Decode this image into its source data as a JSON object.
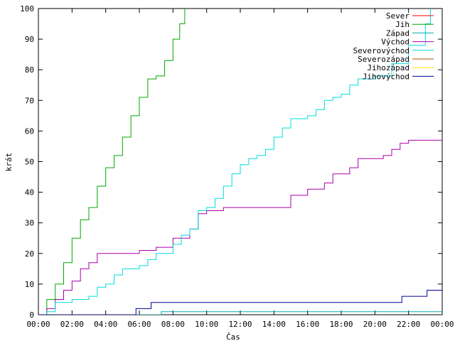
{
  "chart_data": {
    "type": "line",
    "title": "",
    "xlabel": "Čas",
    "ylabel": "krát",
    "xlim": [
      "00:00",
      "24:00"
    ],
    "ylim": [
      0,
      100
    ],
    "grid": false,
    "legend_position": "top-right",
    "x_ticks": [
      "00:00",
      "02:00",
      "04:00",
      "06:00",
      "08:00",
      "10:00",
      "12:00",
      "14:00",
      "16:00",
      "18:00",
      "20:00",
      "22:00",
      "00:00"
    ],
    "y_ticks": [
      "0",
      "10",
      "20",
      "30",
      "40",
      "50",
      "60",
      "70",
      "80",
      "90",
      "100"
    ],
    "x_unit": "hours since 00:00",
    "series": [
      {
        "name": "Sever",
        "color": "#ff0000",
        "points": []
      },
      {
        "name": "Jih",
        "color": "#00aa00",
        "points": [
          [
            0,
            0
          ],
          [
            0.5,
            5
          ],
          [
            1,
            10
          ],
          [
            1.5,
            17
          ],
          [
            2,
            25
          ],
          [
            2.5,
            31
          ],
          [
            3,
            35
          ],
          [
            3.5,
            42
          ],
          [
            4,
            48
          ],
          [
            4.5,
            52
          ],
          [
            5,
            58
          ],
          [
            5.5,
            65
          ],
          [
            6,
            71
          ],
          [
            6.5,
            77
          ],
          [
            7,
            78
          ],
          [
            7.5,
            83
          ],
          [
            8,
            90
          ],
          [
            8.4,
            95
          ],
          [
            8.7,
            100
          ]
        ]
      },
      {
        "name": "Západ",
        "color": "#00aaaa",
        "points": [
          [
            0,
            0
          ],
          [
            7.2,
            0
          ],
          [
            7.3,
            1
          ],
          [
            24,
            1
          ]
        ]
      },
      {
        "name": "Východ",
        "color": "#aa00aa",
        "points": [
          [
            0,
            0
          ],
          [
            0.5,
            2
          ],
          [
            1,
            5
          ],
          [
            1.5,
            8
          ],
          [
            2,
            11
          ],
          [
            2.5,
            15
          ],
          [
            3,
            17
          ],
          [
            3.5,
            20
          ],
          [
            6,
            21
          ],
          [
            7,
            22
          ],
          [
            8,
            25
          ],
          [
            9,
            28
          ],
          [
            9.5,
            33
          ],
          [
            10,
            34
          ],
          [
            11,
            35
          ],
          [
            14.5,
            35
          ],
          [
            15,
            39
          ],
          [
            16,
            41
          ],
          [
            17,
            43
          ],
          [
            17.5,
            46
          ],
          [
            18.5,
            48
          ],
          [
            19,
            51
          ],
          [
            20.5,
            52
          ],
          [
            21,
            54
          ],
          [
            21.5,
            56
          ],
          [
            22,
            57
          ],
          [
            24,
            57
          ]
        ]
      },
      {
        "name": "Severovýchod",
        "color": "#00dddd",
        "points": [
          [
            0,
            0
          ],
          [
            0.5,
            1
          ],
          [
            1,
            4
          ],
          [
            2,
            5
          ],
          [
            3,
            6
          ],
          [
            3.5,
            9
          ],
          [
            4,
            10
          ],
          [
            4.5,
            13
          ],
          [
            5,
            15
          ],
          [
            6,
            16
          ],
          [
            6.5,
            18
          ],
          [
            7,
            20
          ],
          [
            8,
            23
          ],
          [
            8.5,
            26
          ],
          [
            9,
            28
          ],
          [
            9.5,
            34
          ],
          [
            10,
            35
          ],
          [
            10.5,
            38
          ],
          [
            11,
            42
          ],
          [
            11.5,
            46
          ],
          [
            12,
            49
          ],
          [
            12.5,
            51
          ],
          [
            13,
            52
          ],
          [
            13.5,
            54
          ],
          [
            14,
            58
          ],
          [
            14.5,
            61
          ],
          [
            15,
            64
          ],
          [
            16,
            65
          ],
          [
            16.5,
            67
          ],
          [
            17,
            70
          ],
          [
            17.5,
            71
          ],
          [
            18,
            72
          ],
          [
            18.5,
            75
          ],
          [
            19,
            77
          ],
          [
            20,
            78
          ],
          [
            21,
            82
          ],
          [
            22,
            88
          ],
          [
            23,
            95
          ],
          [
            23.3,
            100
          ]
        ]
      },
      {
        "name": "Severozápad",
        "color": "#aa5500",
        "points": []
      },
      {
        "name": "Jihozápad",
        "color": "#ffdd00",
        "points": []
      },
      {
        "name": "Jihovýchod",
        "color": "#000099",
        "points": [
          [
            0,
            0
          ],
          [
            5.8,
            0
          ],
          [
            5.8,
            2
          ],
          [
            6.5,
            2
          ],
          [
            6.7,
            4
          ],
          [
            21.5,
            4
          ],
          [
            21.6,
            6
          ],
          [
            23,
            6
          ],
          [
            23.1,
            8
          ],
          [
            24,
            8
          ]
        ]
      }
    ]
  }
}
